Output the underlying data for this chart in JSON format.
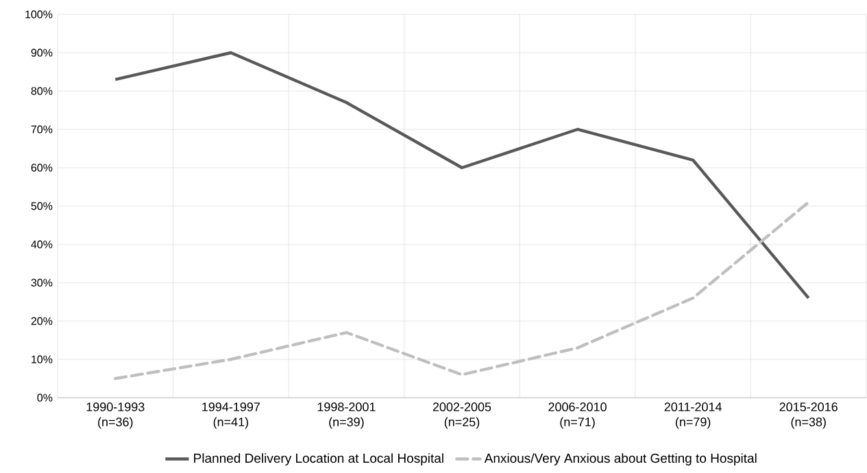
{
  "chart_data": {
    "type": "line",
    "categories": [
      "1990-1993 (n=36)",
      "1994-1997 (n=41)",
      "1998-2001 (n=39)",
      "2002-2005 (n=25)",
      "2006-2010 (n=71)",
      "2011-2014 (n=79)",
      "2015-2016 (n=38)"
    ],
    "series": [
      {
        "name": "Planned Delivery Location at Local Hospital",
        "color": "#595959",
        "line_style": "solid",
        "values": [
          83,
          90,
          77,
          60,
          70,
          62,
          26
        ]
      },
      {
        "name": "Anxious/Very Anxious about Getting to Hospital",
        "color": "#bfbfbf",
        "line_style": "dashed",
        "values": [
          5,
          10,
          17,
          6,
          13,
          26,
          51
        ]
      }
    ],
    "ylim": [
      0,
      100
    ],
    "yticks": [
      {
        "value": 0,
        "label": "0%"
      },
      {
        "value": 10,
        "label": "10%"
      },
      {
        "value": 20,
        "label": "20%"
      },
      {
        "value": 30,
        "label": "30%"
      },
      {
        "value": 40,
        "label": "40%"
      },
      {
        "value": 50,
        "label": "50%"
      },
      {
        "value": 60,
        "label": "60%"
      },
      {
        "value": 70,
        "label": "70%"
      },
      {
        "value": 80,
        "label": "80%"
      },
      {
        "value": 90,
        "label": "90%"
      },
      {
        "value": 100,
        "label": "100%"
      }
    ],
    "grid": true,
    "legend": "bottom",
    "marker": "none"
  }
}
